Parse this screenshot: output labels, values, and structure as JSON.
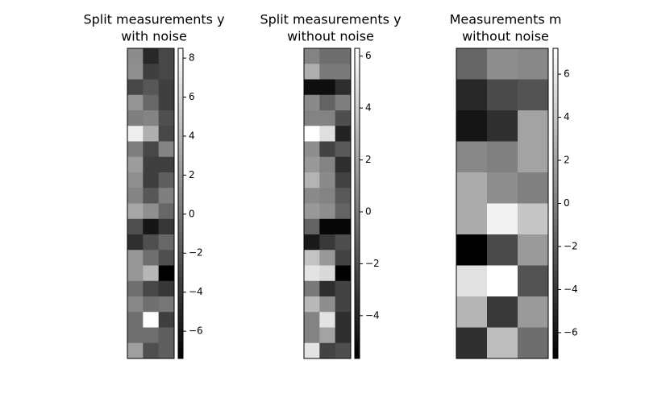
{
  "chart_data": [
    {
      "type": "heatmap",
      "title": [
        "Split measurements y",
        "with noise"
      ],
      "colormap": "gray",
      "vlim": [
        -7.4,
        8.5
      ],
      "cticks": [
        {
          "value": -6,
          "label": "−6"
        },
        {
          "value": -4,
          "label": "−4"
        },
        {
          "value": -2,
          "label": "−2"
        },
        0,
        2,
        4,
        6,
        8
      ],
      "values": [
        [
          1.3,
          -4.9,
          -3.0
        ],
        [
          1.5,
          -3.5,
          -3.0
        ],
        [
          -3.0,
          -2.0,
          -3.5
        ],
        [
          1.8,
          -1.0,
          -3.5
        ],
        [
          0.5,
          0.8,
          -2.5
        ],
        [
          7.5,
          3.5,
          -3.0
        ],
        [
          0.5,
          -3.0,
          0.8
        ],
        [
          2.3,
          -3.5,
          -3.5
        ],
        [
          1.5,
          -3.5,
          -1.5
        ],
        [
          0.8,
          -2.0,
          0.5
        ],
        [
          3.0,
          1.5,
          -1.0
        ],
        [
          -2.5,
          -6.0,
          -4.0
        ],
        [
          -4.5,
          -2.5,
          -1.0
        ],
        [
          2.0,
          -0.5,
          -2.5
        ],
        [
          2.0,
          4.0,
          -7.4
        ],
        [
          -0.5,
          -3.0,
          -4.0
        ],
        [
          1.0,
          -0.5,
          0.0
        ],
        [
          -0.5,
          8.5,
          -3.5
        ],
        [
          -0.5,
          -0.5,
          -1.5
        ],
        [
          2.5,
          -2.5,
          -1.5
        ]
      ]
    },
    {
      "type": "heatmap",
      "title": [
        "Split measurements y",
        "without noise"
      ],
      "colormap": "gray",
      "vlim": [
        -5.65,
        6.3
      ],
      "cticks": [
        {
          "value": -4,
          "label": "−4"
        },
        {
          "value": -2,
          "label": "−2"
        },
        0,
        2,
        4,
        6
      ],
      "values": [
        [
          0.5,
          -0.5,
          -0.5
        ],
        [
          2.5,
          0,
          0
        ],
        [
          -5.0,
          -5.0,
          -3.5
        ],
        [
          0.8,
          -1.0,
          0.3
        ],
        [
          0.5,
          0.5,
          -2.0
        ],
        [
          6.3,
          4.8,
          -4.0
        ],
        [
          1.0,
          -2.5,
          -1.5
        ],
        [
          1.5,
          0.5,
          -3.5
        ],
        [
          2.8,
          0.8,
          -2.5
        ],
        [
          0.8,
          0.5,
          -1.5
        ],
        [
          1.5,
          1.0,
          -1.0
        ],
        [
          -1.0,
          -5.3,
          -5.3
        ],
        [
          -4.5,
          -3.0,
          -2.0
        ],
        [
          3.5,
          1.5,
          -2.5
        ],
        [
          5.0,
          4.5,
          -5.6
        ],
        [
          0.0,
          -3.5,
          -2.5
        ],
        [
          3.0,
          1.0,
          -2.5
        ],
        [
          0.5,
          5.0,
          -3.5
        ],
        [
          0.5,
          2.0,
          -3.5
        ],
        [
          5.0,
          -2.5,
          -2.0
        ]
      ]
    },
    {
      "type": "heatmap",
      "title": [
        "Measurements m",
        "without noise"
      ],
      "colormap": "gray",
      "vlim": [
        -7.2,
        7.2
      ],
      "cticks": [
        {
          "value": -6,
          "label": "−6"
        },
        {
          "value": -4,
          "label": "−4"
        },
        {
          "value": -2,
          "label": "−2"
        },
        0,
        2,
        4,
        6
      ],
      "values": [
        [
          -1.5,
          0.8,
          0.5
        ],
        [
          -5.0,
          -3.0,
          -2.5
        ],
        [
          -6.0,
          -4.5,
          2.0
        ],
        [
          0.5,
          0,
          2.0
        ],
        [
          2.5,
          0.8,
          0
        ],
        [
          2.5,
          6.5,
          4.0
        ],
        [
          -7.2,
          -3.0,
          1.5
        ],
        [
          5.5,
          7.2,
          -2.5
        ],
        [
          3.0,
          -4.0,
          1.5
        ],
        [
          -4.5,
          3.5,
          -1.0
        ]
      ]
    }
  ]
}
